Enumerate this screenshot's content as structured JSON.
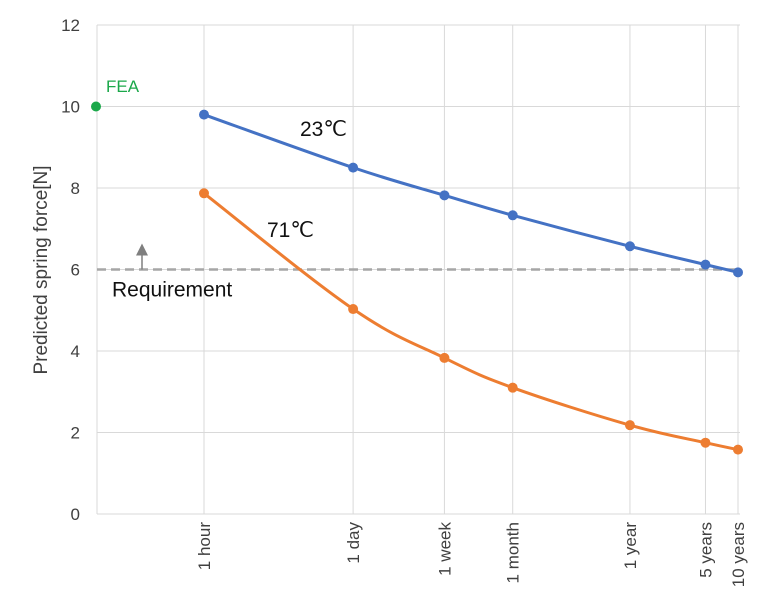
{
  "chart_data": {
    "type": "line",
    "title": "",
    "xlabel": "",
    "ylabel": "Predicted spring force[N]",
    "ylim": [
      0,
      12
    ],
    "yticks": [
      0,
      2,
      4,
      6,
      8,
      10,
      12
    ],
    "log_x": true,
    "x_unit": "hours",
    "categories": [
      "1 hour",
      "1 day",
      "1 week",
      "1 month",
      "1 year",
      "5 years",
      "10 years"
    ],
    "x": [
      1,
      24,
      168,
      720,
      8760,
      43800,
      87600
    ],
    "series": [
      {
        "name": "23℃",
        "color": "#4472C4",
        "values": [
          9.8,
          8.5,
          7.82,
          7.33,
          6.57,
          6.12,
          5.93
        ]
      },
      {
        "name": "71℃",
        "color": "#ED7D31",
        "values": [
          7.87,
          5.03,
          3.83,
          3.1,
          2.18,
          1.75,
          1.58
        ]
      }
    ],
    "fea": {
      "label": "FEA",
      "value": 10.0,
      "color": "#1BA84A"
    },
    "requirement": {
      "label": "Requirement",
      "value": 6.0,
      "color": "#A6A6A6"
    }
  }
}
